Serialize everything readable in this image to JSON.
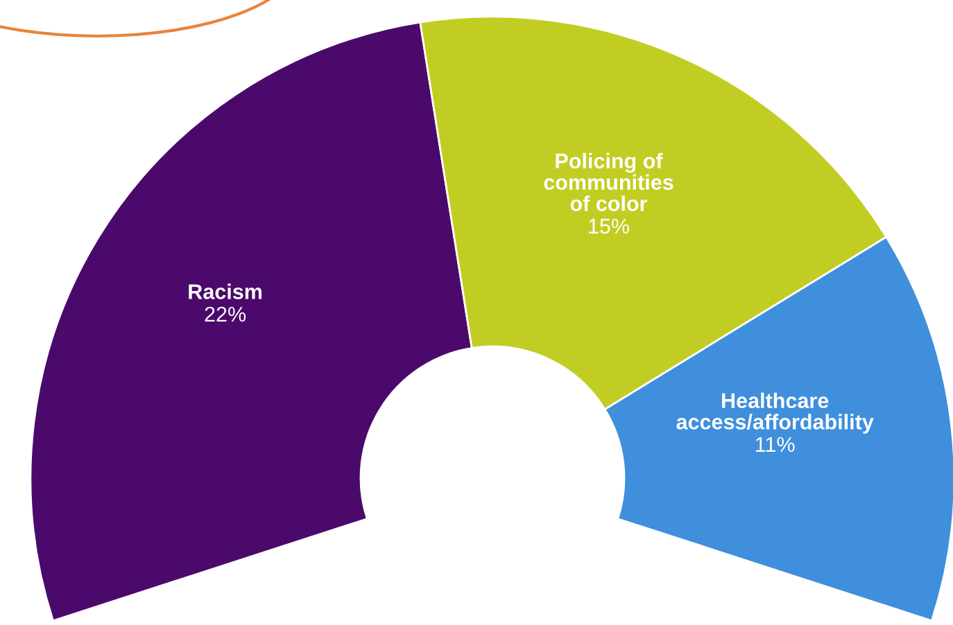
{
  "chart_data": {
    "type": "donut",
    "categories": [
      "Racism",
      "Policing of\ncommunities\nof color",
      "Healthcare\naccess/affordability"
    ],
    "values": [
      22,
      15,
      11
    ],
    "colors": [
      "#4b0a6b",
      "#c2cd23",
      "#3f8fdc"
    ],
    "value_labels": [
      "22%",
      "15%",
      "11%"
    ]
  }
}
